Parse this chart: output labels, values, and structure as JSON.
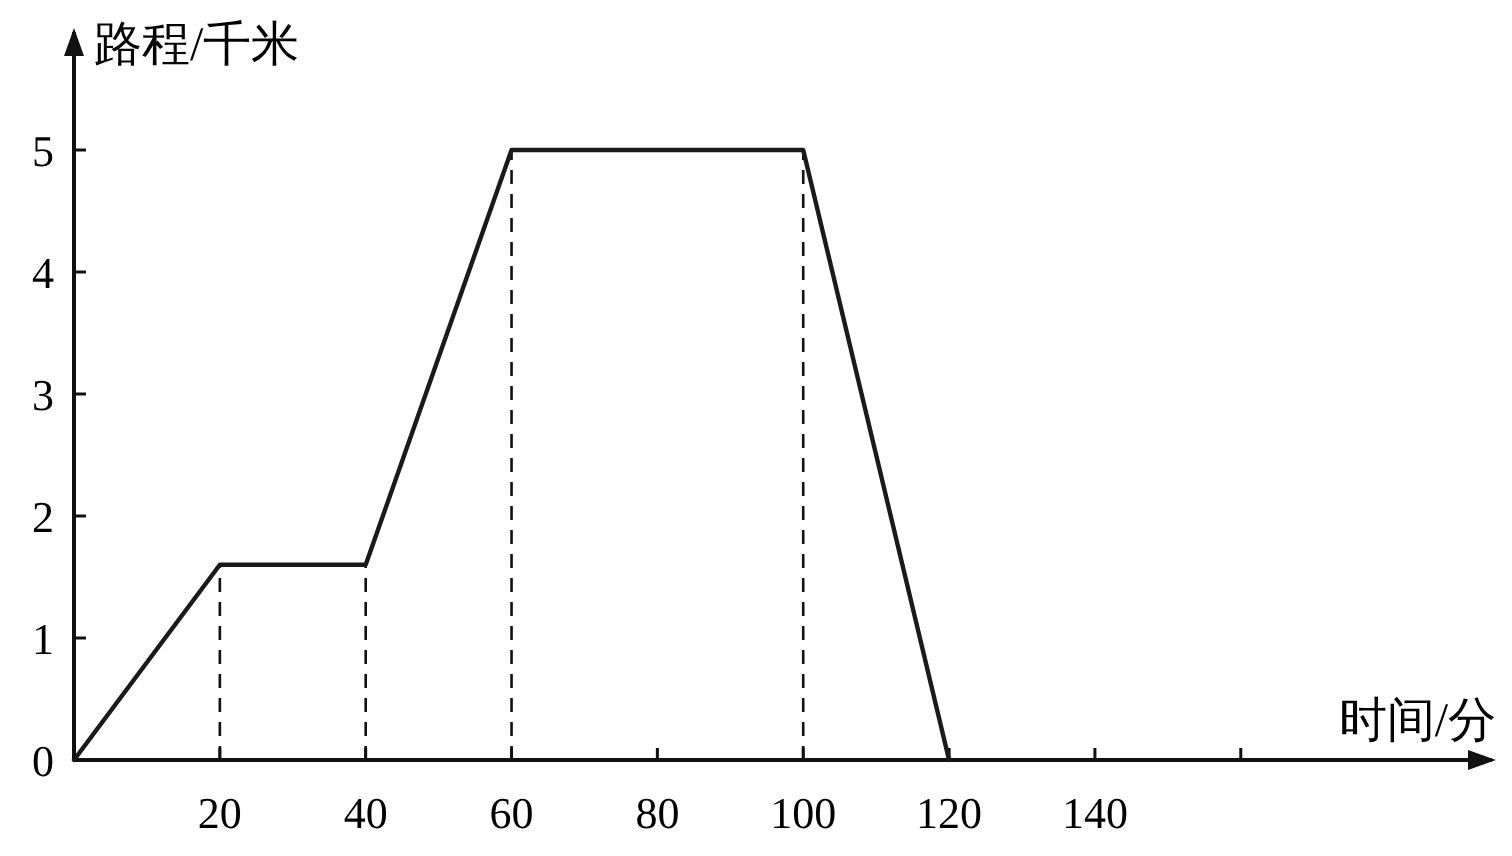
{
  "chart_data": {
    "type": "line",
    "xlabel": "时间/分",
    "ylabel": "路程/千米",
    "x": [
      0,
      20,
      40,
      60,
      100,
      120
    ],
    "series": [
      {
        "color": "#1a1a1a",
        "values": [
          0,
          1.6,
          1.6,
          5,
          5,
          0
        ]
      }
    ],
    "xlim": [
      0,
      195
    ],
    "ylim": [
      0,
      6
    ],
    "xticks": [
      20,
      40,
      60,
      80,
      100,
      120,
      140,
      {
        "value": 160,
        "label": null
      }
    ],
    "yticks": [
      0,
      1,
      2,
      3,
      4,
      5
    ],
    "ref_lines": [
      {
        "axis": "x",
        "value": 20,
        "line_style": "dashed"
      },
      {
        "axis": "x",
        "value": 40,
        "line_style": "dashed"
      },
      {
        "axis": "x",
        "value": 60,
        "line_style": "dashed"
      },
      {
        "axis": "x",
        "value": 100,
        "line_style": "dashed"
      }
    ],
    "grid": false,
    "marker": "none",
    "line_style": "solid"
  }
}
